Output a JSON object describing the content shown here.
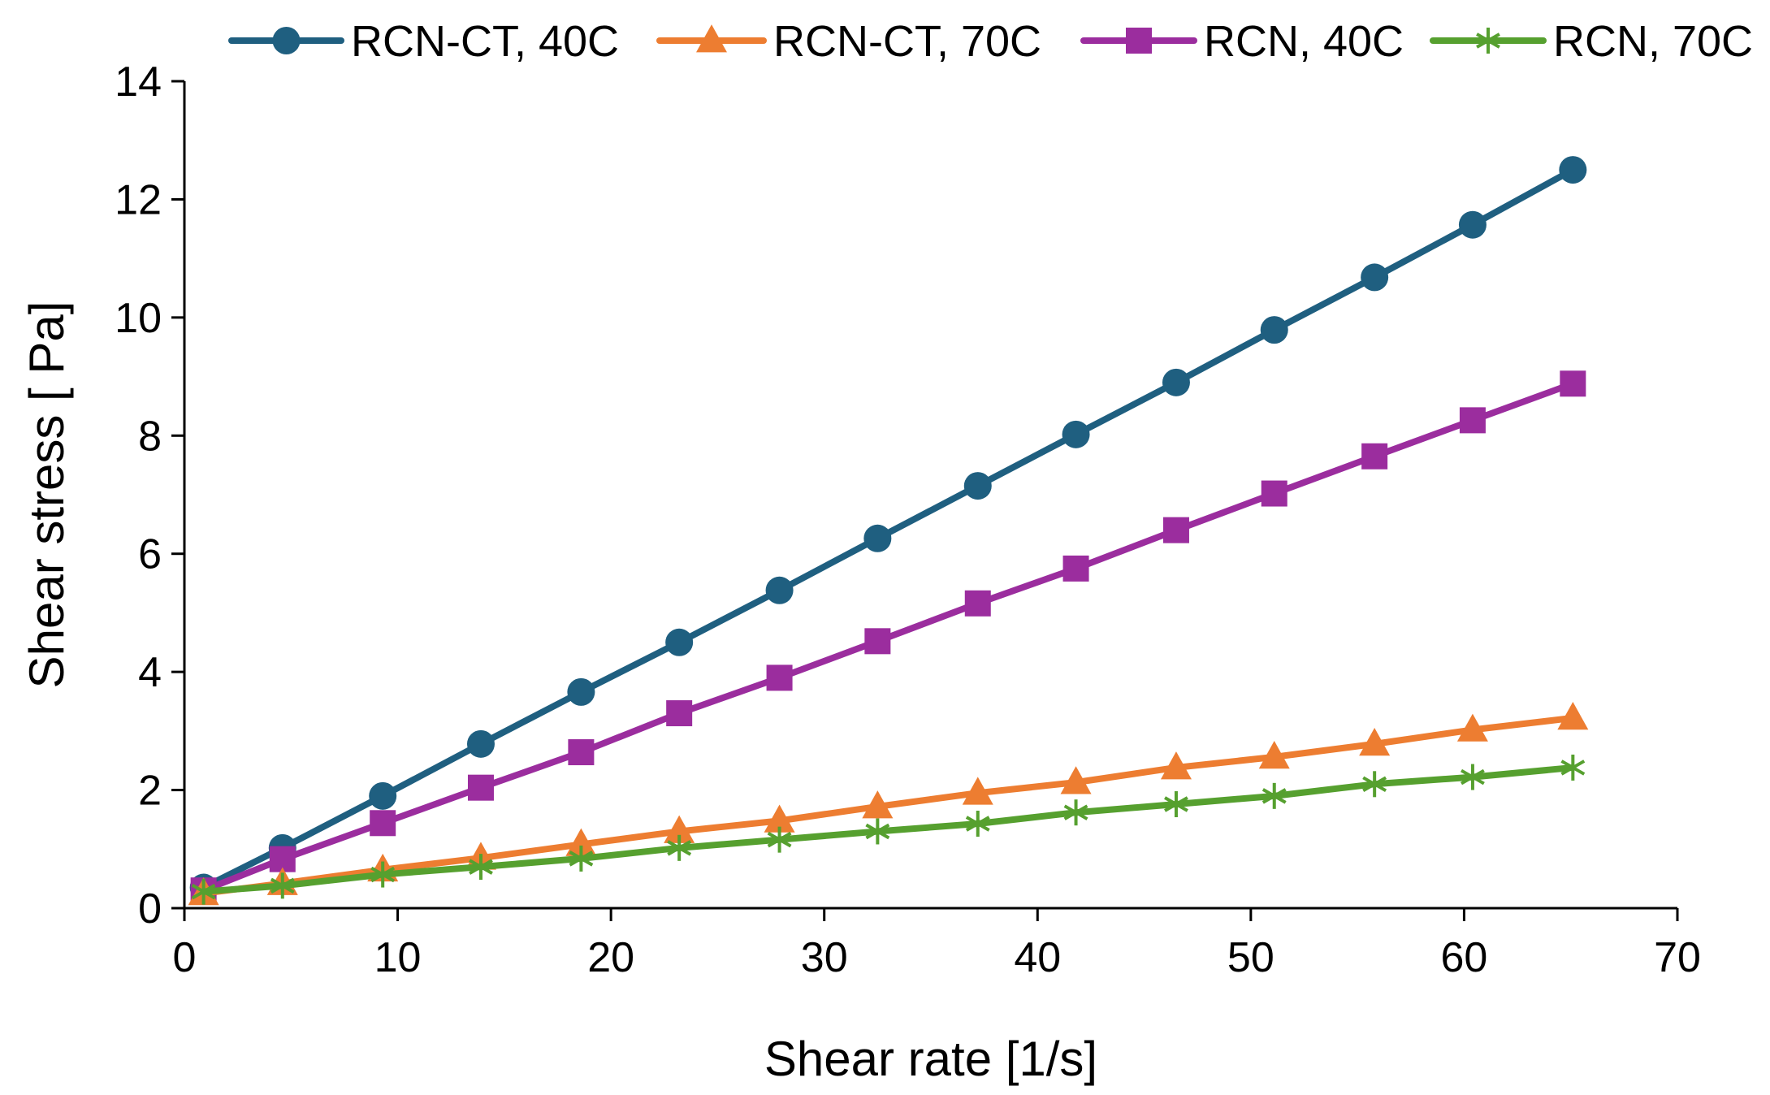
{
  "chart_data": {
    "type": "line",
    "title": "",
    "xlabel": "Shear rate [1/s]",
    "ylabel": "Shear stress [ Pa]",
    "xlim": [
      0,
      70
    ],
    "ylim": [
      0,
      14
    ],
    "x_ticks": [
      0,
      10,
      20,
      30,
      40,
      50,
      60,
      70
    ],
    "y_ticks": [
      0,
      2,
      4,
      6,
      8,
      10,
      12,
      14
    ],
    "grid": false,
    "legend_position": "top",
    "x": [
      0.9,
      4.6,
      9.3,
      13.9,
      18.6,
      23.2,
      27.9,
      32.5,
      37.2,
      41.8,
      46.5,
      51.1,
      55.8,
      60.4,
      65.1
    ],
    "series": [
      {
        "name": "RCN-CT, 40C",
        "color": "#1f5f80",
        "marker": "circle",
        "values": [
          0.35,
          1.02,
          1.9,
          2.78,
          3.66,
          4.5,
          5.38,
          6.26,
          7.15,
          8.02,
          8.9,
          9.79,
          10.68,
          11.57,
          12.5
        ]
      },
      {
        "name": "RCN-CT, 70C",
        "color": "#ed7d31",
        "marker": "triangle",
        "values": [
          0.25,
          0.42,
          0.65,
          0.85,
          1.08,
          1.3,
          1.48,
          1.72,
          1.95,
          2.13,
          2.38,
          2.56,
          2.78,
          3.02,
          3.22
        ]
      },
      {
        "name": "RCN, 40C",
        "color": "#9b2d9e",
        "marker": "square",
        "values": [
          0.3,
          0.83,
          1.44,
          2.04,
          2.64,
          3.3,
          3.9,
          4.52,
          5.16,
          5.75,
          6.4,
          7.02,
          7.65,
          8.26,
          8.88
        ]
      },
      {
        "name": "RCN, 70C",
        "color": "#56a02f",
        "marker": "asterisk",
        "values": [
          0.28,
          0.38,
          0.57,
          0.7,
          0.84,
          1.02,
          1.16,
          1.3,
          1.43,
          1.62,
          1.76,
          1.9,
          2.1,
          2.22,
          2.38
        ]
      }
    ]
  }
}
